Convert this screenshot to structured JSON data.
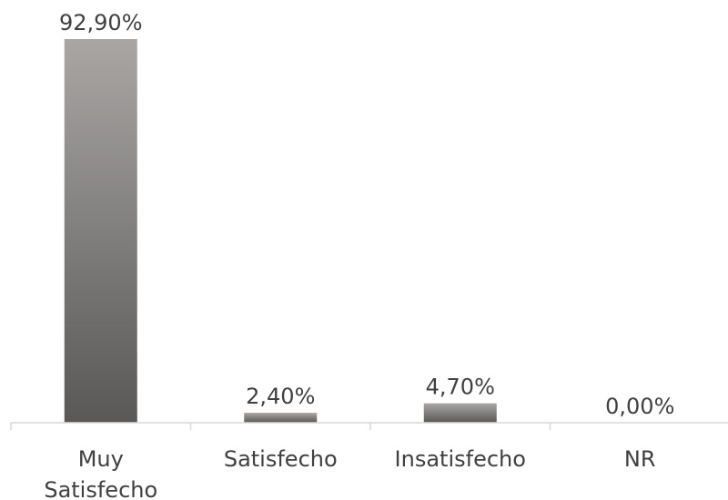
{
  "chart_data": {
    "type": "bar",
    "categories": [
      [
        "Muy",
        "Satisfecho"
      ],
      [
        "Satisfecho"
      ],
      [
        "Insatisfecho"
      ],
      [
        "NR"
      ]
    ],
    "values": [
      92.9,
      2.4,
      4.7,
      0.0
    ],
    "data_labels": [
      "92,90%",
      "2,40%",
      "4,70%",
      "0,00%"
    ],
    "title": "",
    "xlabel": "",
    "ylabel": "",
    "ylim": [
      0,
      92.9
    ],
    "grid": false,
    "legend": "none",
    "colors": {
      "bar_top": "#a9a6a4",
      "bar_bottom": "#595857",
      "axis": "#d9d9d9",
      "text": "#404040"
    }
  }
}
